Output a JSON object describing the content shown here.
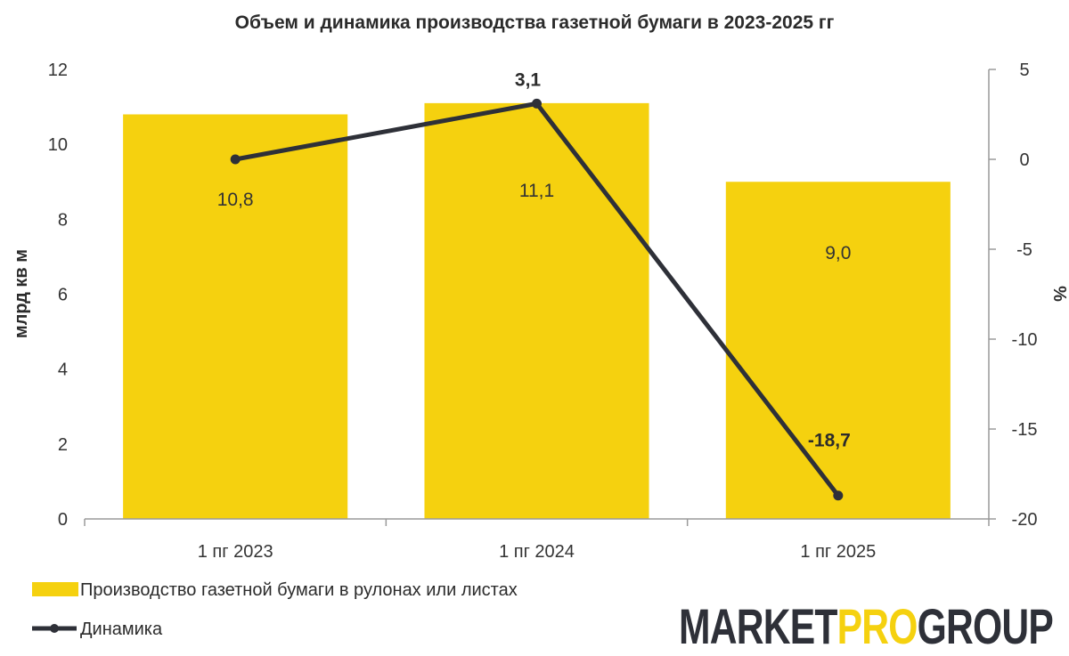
{
  "chart_data": {
    "type": "bar",
    "title": "Объем и динамика производства  газетной бумаги в 2023-2025 гг",
    "categories": [
      "1 пг 2023",
      "1 пг 2024",
      "1 пг 2025"
    ],
    "ylabel": "млрд кв м",
    "y2label": "%",
    "ylim": [
      0,
      12
    ],
    "yticks": [
      0,
      2,
      4,
      6,
      8,
      10,
      12
    ],
    "y2lim": [
      -20,
      5
    ],
    "y2ticks": [
      5,
      0,
      -5,
      -10,
      -15,
      -20
    ],
    "y2tick_labels": [
      "5",
      "0",
      "-5",
      "-10",
      "-15",
      "-20"
    ],
    "grid": false,
    "legend_position": "bottom-left",
    "series": [
      {
        "name": "Производство газетной бумаги в рулонах или листах",
        "type": "bar",
        "axis": "left",
        "color": "#F5D10F",
        "values": [
          10.8,
          11.1,
          9.0
        ],
        "labels": [
          "10,8",
          "11,1",
          "9,0"
        ]
      },
      {
        "name": "Динамика",
        "type": "line",
        "axis": "right",
        "color": "#2E3038",
        "values": [
          0,
          3.1,
          -18.7
        ],
        "labels": [
          "",
          "3,1",
          "-18,7"
        ]
      }
    ]
  },
  "brand": {
    "logo_text": "MARKETPROGROUP",
    "logo_part1": "MARKET",
    "logo_part2": "PRO",
    "logo_part3": "GROUP",
    "dark_color": "#2E3038",
    "accent_color": "#F5D10F"
  }
}
